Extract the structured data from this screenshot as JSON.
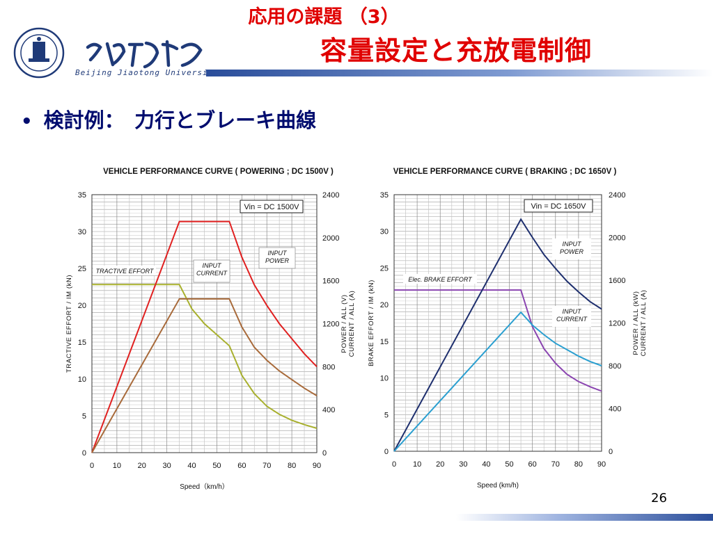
{
  "header": {
    "title_line1": "応用の課題 （3）",
    "title_line2": "容量設定と充放電制御",
    "university_name": "Beijing Jiaotong University"
  },
  "bullet": {
    "text": "検討例：　力行とブレーキ曲線"
  },
  "page_number": "26",
  "colors": {
    "title_red": "#e00000",
    "bullet_navy": "#000c6e",
    "bar_blue": "#2a4d9a"
  },
  "chart_data": [
    {
      "type": "line",
      "title": "VEHICLE PERFORMANCE CURVE ( POWERING ; DC 1500V )",
      "xlabel": "Speed（km/h）",
      "ylabel_left": "TRACTIVE EFFORT  /  IM  (kN)",
      "ylabel_right_1": "POWER  /  ALL  (V)",
      "ylabel_right_2": "CURRENT  /  ALL  (A)",
      "xlim": [
        0,
        90
      ],
      "ylim_left": [
        0,
        35
      ],
      "ylim_right": [
        0,
        2400
      ],
      "x_ticks": [
        0,
        10,
        20,
        30,
        40,
        50,
        60,
        70,
        80,
        90
      ],
      "y_ticks_left": [
        0,
        5,
        10,
        15,
        20,
        25,
        30,
        35
      ],
      "y_ticks_right": [
        0,
        400,
        800,
        1200,
        1600,
        2000,
        2400
      ],
      "grid": true,
      "box_label": "Vin =   DC 1500V",
      "series": [
        {
          "name": "TRACTIVE EFFORT",
          "color": "#a8b02e",
          "axis": "left",
          "x": [
            0,
            35,
            40,
            45,
            50,
            55,
            60,
            65,
            70,
            75,
            80,
            85,
            90
          ],
          "y": [
            22.8,
            22.8,
            19.5,
            17.5,
            16.0,
            14.5,
            10.5,
            8.0,
            6.3,
            5.2,
            4.4,
            3.8,
            3.3
          ]
        },
        {
          "name": "INPUT POWER",
          "color": "#e02020",
          "axis": "right",
          "x": [
            0,
            35,
            55,
            60,
            65,
            70,
            75,
            80,
            85,
            90
          ],
          "y": [
            0,
            2150,
            2150,
            1820,
            1560,
            1370,
            1200,
            1060,
            920,
            800
          ]
        },
        {
          "name": "INPUT CURRENT",
          "color": "#a86a3a",
          "axis": "right",
          "x": [
            0,
            35,
            55,
            60,
            65,
            70,
            75,
            80,
            85,
            90
          ],
          "y": [
            0,
            1430,
            1430,
            1170,
            980,
            860,
            760,
            680,
            600,
            530
          ]
        }
      ]
    },
    {
      "type": "line",
      "title": "VEHICLE PERFORMANCE CURVE ( BRAKING ; DC 1650V )",
      "xlabel": "Speed (km/h)",
      "ylabel_left": "BRAKE EFFORT  /  IM  (kN)",
      "ylabel_right_1": "POWER  /  ALL  (kW)",
      "ylabel_right_2": "CURRENT  /  ALL  (A)",
      "xlim": [
        0,
        90
      ],
      "ylim_left": [
        0,
        35
      ],
      "ylim_right": [
        0,
        2400
      ],
      "x_ticks": [
        0,
        10,
        20,
        30,
        40,
        50,
        60,
        70,
        80,
        90
      ],
      "y_ticks_left": [
        0,
        5,
        10,
        15,
        20,
        25,
        30,
        35
      ],
      "y_ticks_right": [
        0,
        400,
        800,
        1200,
        1600,
        2000,
        2400
      ],
      "grid": true,
      "box_label": "Vin  =  DC 1650V",
      "series": [
        {
          "name": "Elec. BRAKE EFFORT",
          "color": "#8a44b0",
          "axis": "left",
          "x": [
            0,
            55,
            60,
            65,
            70,
            75,
            80,
            85,
            90
          ],
          "y": [
            22.0,
            22.0,
            17.0,
            14.0,
            12.0,
            10.5,
            9.5,
            8.8,
            8.2
          ]
        },
        {
          "name": "INPUT POWER",
          "color": "#1e2f6e",
          "axis": "right",
          "x": [
            0,
            55,
            60,
            65,
            70,
            75,
            80,
            85,
            90
          ],
          "y": [
            0,
            2170,
            2000,
            1840,
            1710,
            1590,
            1490,
            1400,
            1330
          ]
        },
        {
          "name": "INPUT CURRENT",
          "color": "#2a9fd0",
          "axis": "right",
          "x": [
            0,
            55,
            60,
            65,
            70,
            75,
            80,
            85,
            90
          ],
          "y": [
            0,
            1300,
            1180,
            1090,
            1010,
            950,
            890,
            840,
            800
          ]
        }
      ]
    }
  ]
}
